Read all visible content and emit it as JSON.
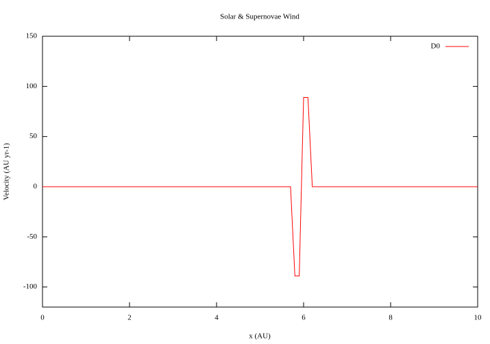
{
  "chart_data": {
    "type": "line",
    "title": "Solar & Supernovae Wind",
    "x_label": "x (AU)",
    "y_label": "Velocity (AU yr-1)",
    "x": [
      0,
      5.7,
      5.8,
      5.9,
      6.0,
      6.1,
      6.2,
      10
    ],
    "series": [
      {
        "name": "D0",
        "color": "#ff0000",
        "values": [
          0,
          0,
          -89,
          -89,
          89,
          89,
          0,
          0
        ]
      }
    ],
    "xlim": [
      0,
      10
    ],
    "xticks": [
      0,
      2,
      4,
      6,
      8,
      10
    ],
    "ylim": [
      -120,
      150
    ],
    "yticks": [
      -100,
      -50,
      0,
      50,
      100,
      150
    ],
    "legend": "top-right",
    "grid": false
  }
}
